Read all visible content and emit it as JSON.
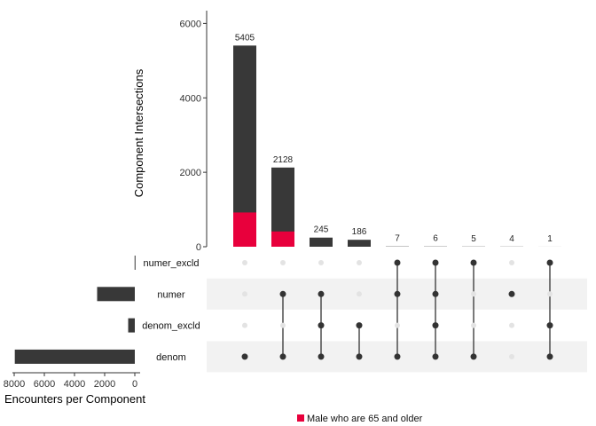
{
  "chart_data": {
    "type": "upset",
    "intersection_axis": {
      "title": "Component Intersections",
      "ticks": [
        0,
        2000,
        4000,
        6000
      ],
      "ylim": [
        0,
        6200
      ]
    },
    "set_size_axis": {
      "title": "Encounters per Component",
      "ticks": [
        8000,
        6000,
        4000,
        2000,
        0
      ],
      "xlim": [
        0,
        8000
      ]
    },
    "sets": [
      {
        "name": "numer_excld",
        "size": 14
      },
      {
        "name": "numer",
        "size": 2500
      },
      {
        "name": "denom_excld",
        "size": 440
      },
      {
        "name": "denom",
        "size": 7960
      }
    ],
    "intersections": [
      {
        "label": "5405",
        "total": 5405,
        "highlight": 920,
        "members": [
          "denom"
        ]
      },
      {
        "label": "2128",
        "total": 2128,
        "highlight": 410,
        "members": [
          "numer",
          "denom"
        ]
      },
      {
        "label": "245",
        "total": 245,
        "highlight": 0,
        "members": [
          "numer",
          "denom_excld",
          "denom"
        ]
      },
      {
        "label": "186",
        "total": 186,
        "highlight": 0,
        "members": [
          "denom_excld",
          "denom"
        ]
      },
      {
        "label": "7",
        "total": 7,
        "highlight": 0,
        "members": [
          "numer_excld",
          "numer",
          "denom"
        ]
      },
      {
        "label": "6",
        "total": 6,
        "highlight": 0,
        "members": [
          "numer_excld",
          "numer",
          "denom_excld",
          "denom"
        ]
      },
      {
        "label": "5",
        "total": 5,
        "highlight": 0,
        "members": [
          "numer_excld",
          "denom"
        ]
      },
      {
        "label": "4",
        "total": 4,
        "highlight": 0,
        "members": [
          "numer"
        ]
      },
      {
        "label": "1",
        "total": 1,
        "highlight": 0,
        "members": [
          "numer_excld",
          "denom_excld",
          "denom"
        ]
      }
    ],
    "highlight_series": {
      "name": "Male who are 65 and older",
      "color": "#e8003c"
    },
    "bar_color": "#383838",
    "dot_active_color": "#333333",
    "dot_inactive_color": "#e3e3e3",
    "row_shade_color": "#f2f2f2",
    "legend_position": "bottom"
  }
}
